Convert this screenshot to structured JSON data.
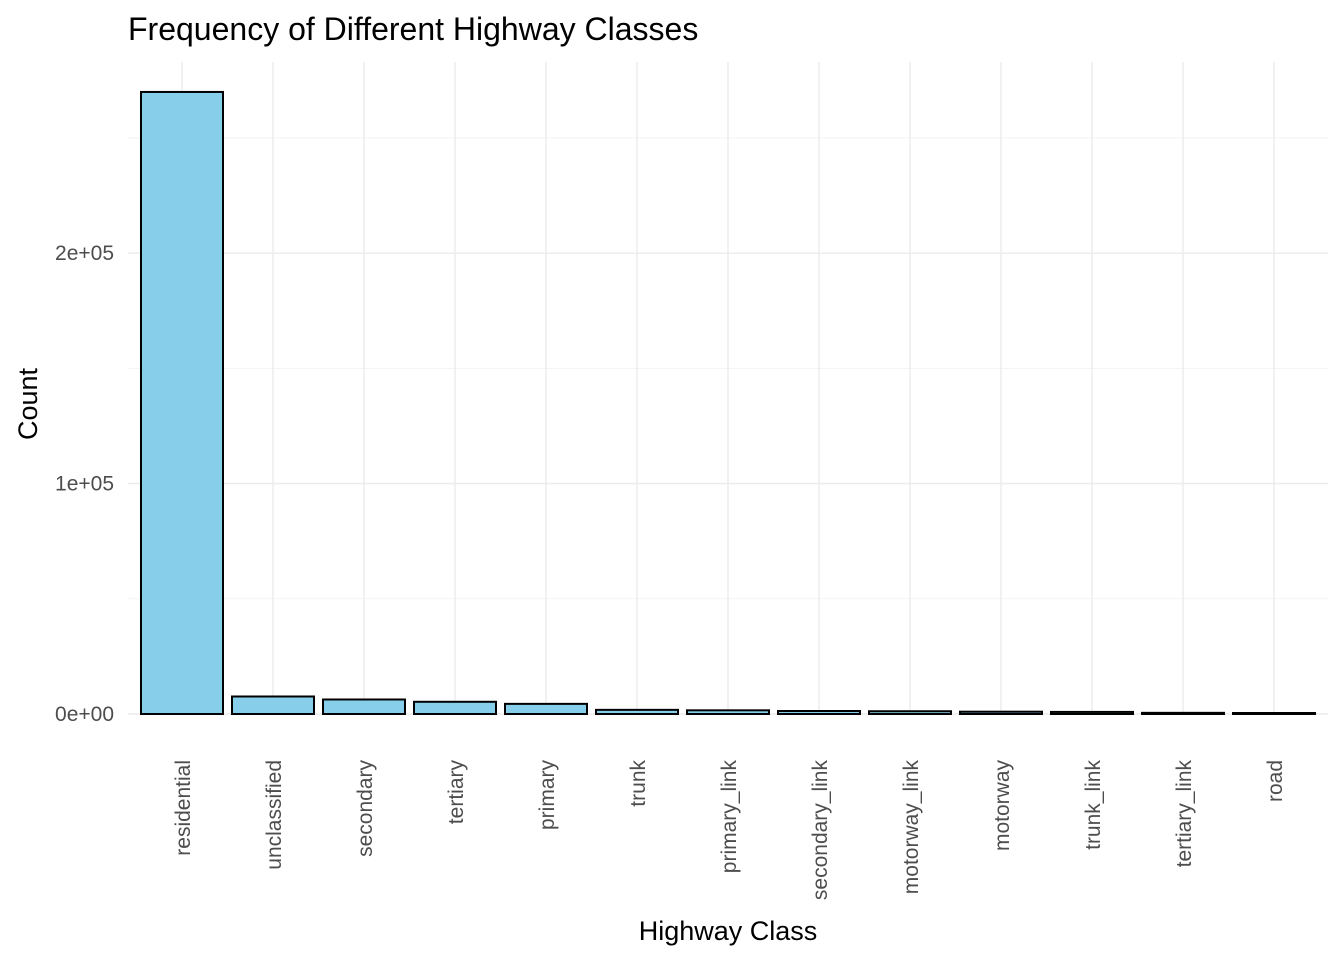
{
  "chart_data": {
    "type": "bar",
    "title": "Frequency of Different Highway Classes",
    "xlabel": "Highway Class",
    "ylabel": "Count",
    "categories": [
      "residential",
      "unclassified",
      "secondary",
      "tertiary",
      "primary",
      "trunk",
      "primary_link",
      "secondary_link",
      "motorway_link",
      "motorway",
      "trunk_link",
      "tertiary_link",
      "road"
    ],
    "values": [
      270000,
      7600,
      6300,
      5300,
      4400,
      1800,
      1600,
      1300,
      1200,
      1000,
      900,
      500,
      200
    ],
    "ylim": [
      0,
      283000
    ],
    "yticks": [
      0,
      100000,
      200000
    ],
    "ytick_labels": [
      "0e+00",
      "1e+05",
      "2e+05"
    ],
    "grid": true,
    "bar_color": "#87CEEB",
    "bar_outline": "#000000"
  }
}
